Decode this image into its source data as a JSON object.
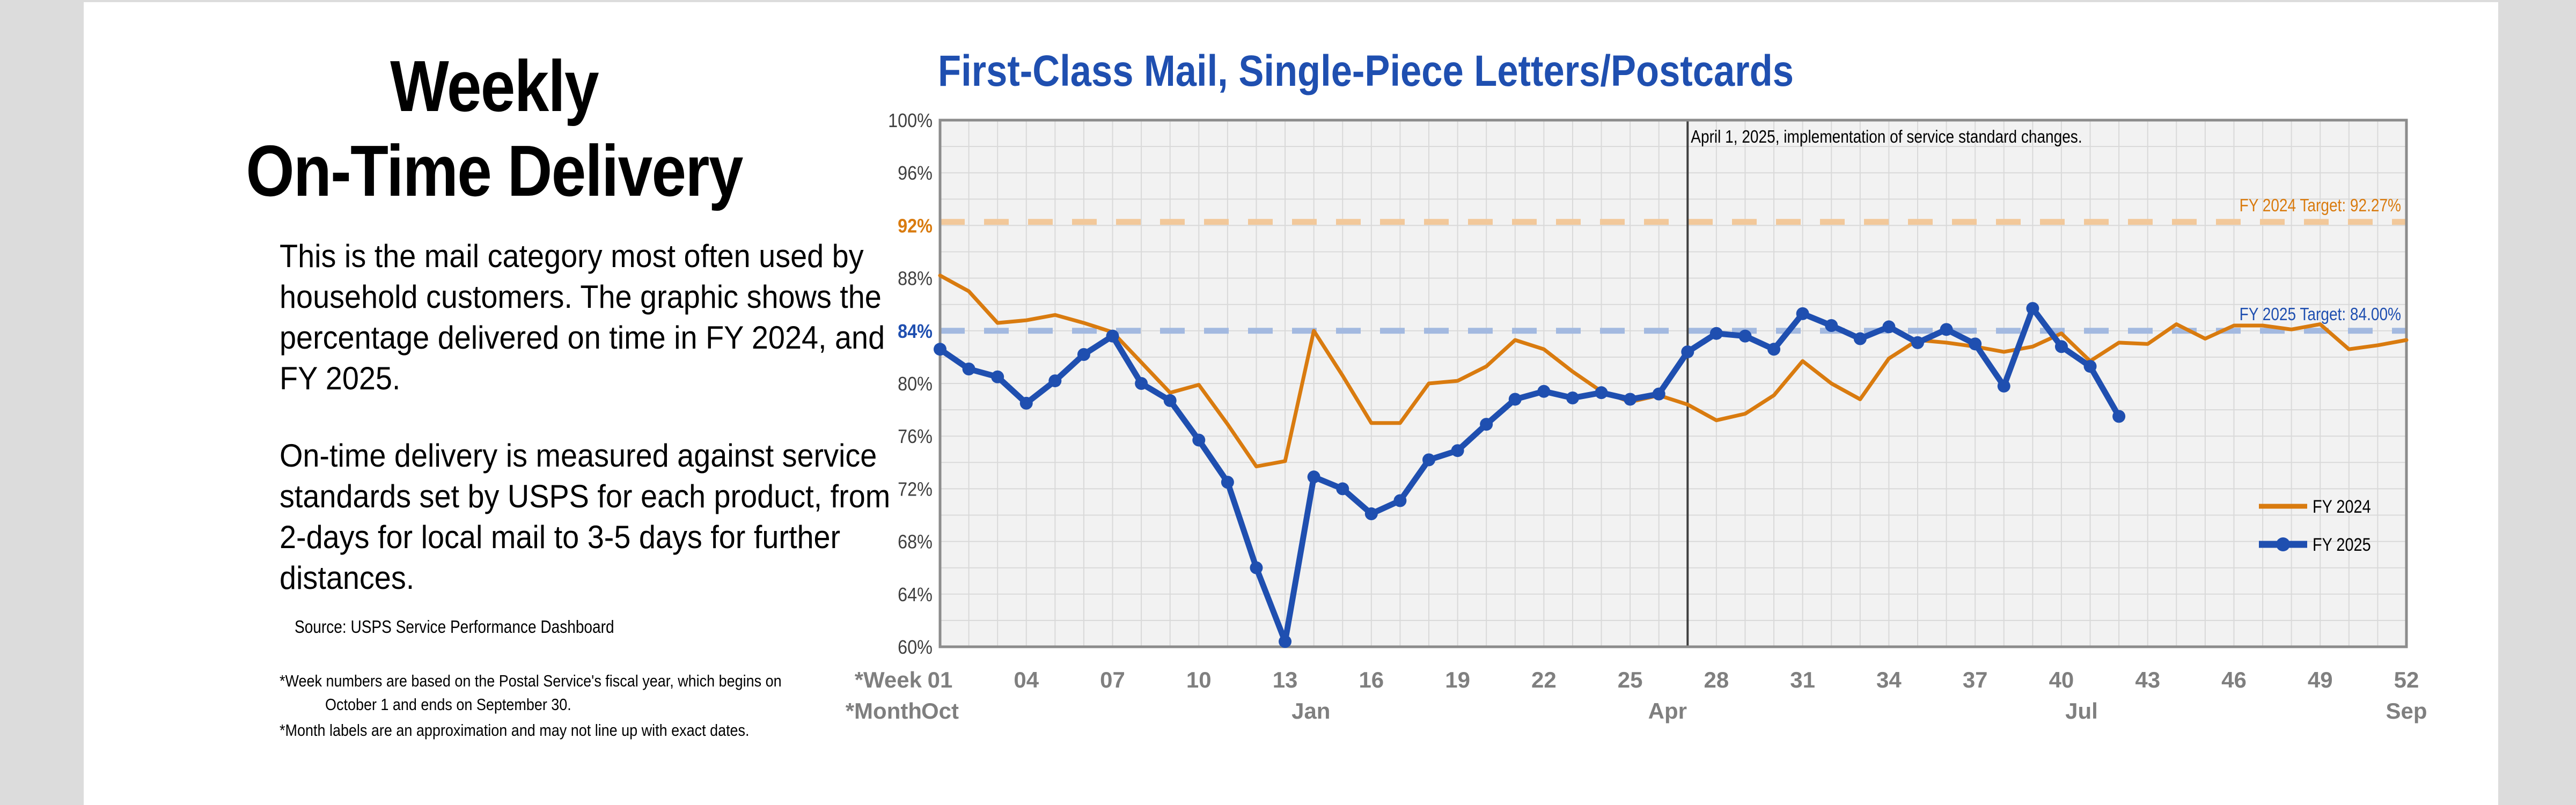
{
  "left_panel": {
    "title_line1": "Weekly",
    "title_line2": "On-Time Delivery",
    "paragraph1": "This is the mail category most often used by household customers. The graphic shows the percentage delivered on time in FY 2024, and FY 2025.",
    "paragraph2": "On-time delivery is measured against service standards set by USPS for each product, from 2-days for local mail to 3-5 days for further distances.",
    "source": "Source: USPS Service Performance Dashboard",
    "footnote1": "*Week numbers are based on the Postal Service's fiscal year, which begins on",
    "footnote1_cont": "October 1 and ends on September 30.",
    "footnote2": "*Month labels are an approximation and may not line up with exact dates."
  },
  "colors": {
    "fy2024": "#d97b0f",
    "fy2025": "#1f4fb0",
    "target2024": "#f2c89a",
    "target2025": "#a3b9e0",
    "title": "#1f4fb0",
    "plot_bg": "#f2f2f2",
    "grid": "#d9d9d9"
  },
  "chart_data": {
    "type": "line",
    "title": "First-Class Mail, Single-Piece Letters/Postcards",
    "ylim": [
      60,
      100
    ],
    "y_ticks": [
      "100%",
      "96%",
      "92%",
      "88%",
      "84%",
      "80%",
      "76%",
      "72%",
      "68%",
      "64%",
      "60%"
    ],
    "xlim": [
      1,
      52
    ],
    "x_axis_label": "*Week",
    "x_ticks": [
      "01",
      "04",
      "07",
      "10",
      "13",
      "16",
      "19",
      "22",
      "25",
      "28",
      "31",
      "34",
      "37",
      "40",
      "43",
      "46",
      "49",
      "52"
    ],
    "month_axis_label": "*Month",
    "month_ticks": [
      {
        "label": "Oct",
        "week": 1
      },
      {
        "label": "Jan",
        "week": 13.9
      },
      {
        "label": "Apr",
        "week": 26.3
      },
      {
        "label": "Jul",
        "week": 40.7
      },
      {
        "label": "Sep",
        "week": 52
      }
    ],
    "grid": true,
    "legend_position": "bottom-right",
    "annotation": {
      "text": "April 1, 2025, implementation of service standard changes.",
      "week": 27
    },
    "targets": [
      {
        "label": "FY 2024 Target: 92.27%",
        "value": 92.27,
        "series": "FY 2024"
      },
      {
        "label": "FY 2025 Target: 84.00%",
        "value": 84.0,
        "series": "FY 2025"
      }
    ],
    "series": [
      {
        "name": "FY 2024",
        "markers": false,
        "x": [
          1,
          2,
          3,
          4,
          5,
          6,
          7,
          8,
          9,
          10,
          11,
          12,
          13,
          14,
          15,
          16,
          17,
          18,
          19,
          20,
          21,
          22,
          23,
          24,
          25,
          26,
          27,
          28,
          29,
          30,
          31,
          32,
          33,
          34,
          35,
          36,
          37,
          38,
          39,
          40,
          41,
          42,
          43,
          44,
          45,
          46,
          47,
          48,
          49,
          50,
          51,
          52
        ],
        "values": [
          88.2,
          87.0,
          84.6,
          84.8,
          85.2,
          84.6,
          83.9,
          81.6,
          79.3,
          79.9,
          76.9,
          73.7,
          74.1,
          84.0,
          80.6,
          77.0,
          77.0,
          80.0,
          80.2,
          81.3,
          83.3,
          82.6,
          80.9,
          79.4,
          78.6,
          79.1,
          78.4,
          77.2,
          77.7,
          79.1,
          81.7,
          80.0,
          78.8,
          81.9,
          83.3,
          83.1,
          82.8,
          82.4,
          82.8,
          83.8,
          81.7,
          83.1,
          83.0,
          84.5,
          83.4,
          84.4,
          84.4,
          84.1,
          84.5,
          82.6,
          82.9,
          83.3
        ]
      },
      {
        "name": "FY 2025",
        "markers": true,
        "x": [
          1,
          2,
          3,
          4,
          5,
          6,
          7,
          8,
          9,
          10,
          11,
          12,
          13,
          14,
          15,
          16,
          17,
          18,
          19,
          20,
          21,
          22,
          23,
          24,
          25,
          26,
          27,
          28,
          29,
          30,
          31,
          32,
          33,
          34,
          35,
          36,
          37,
          38,
          39,
          40,
          41,
          42
        ],
        "values": [
          82.6,
          81.1,
          80.5,
          78.5,
          80.2,
          82.2,
          83.6,
          80.0,
          78.7,
          75.7,
          72.5,
          66.0,
          60.4,
          72.9,
          72.0,
          70.1,
          71.1,
          74.2,
          74.9,
          76.9,
          78.8,
          79.4,
          78.9,
          79.3,
          78.8,
          79.2,
          82.4,
          83.8,
          83.6,
          82.6,
          85.3,
          84.4,
          83.4,
          84.3,
          83.1,
          84.1,
          83.0,
          79.8,
          85.7,
          82.8,
          81.3,
          77.5
        ]
      }
    ]
  }
}
